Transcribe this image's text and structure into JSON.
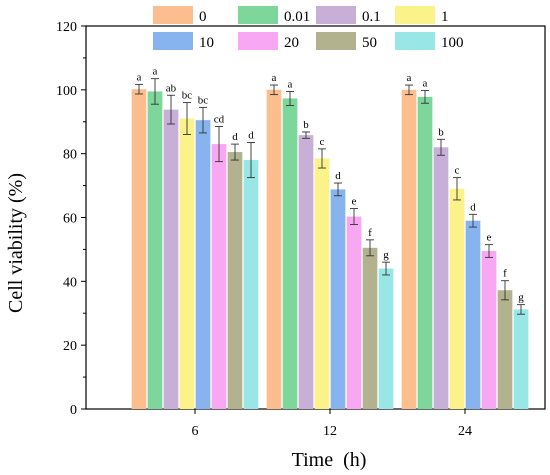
{
  "chart_data": {
    "type": "bar",
    "categories": [
      "6",
      "12",
      "24"
    ],
    "xlabel": "Time  (h)",
    "ylabel": "Cell viability (%)",
    "ylim": [
      0,
      120
    ],
    "yticks": [
      0,
      20,
      40,
      60,
      80,
      100,
      120
    ],
    "legend_position": "top-right",
    "grid": false,
    "series": [
      {
        "name": "0",
        "color": "#FDBE8F",
        "values": [
          100.2,
          100.0,
          100.0
        ],
        "errors": [
          1.5,
          1.5,
          1.5
        ],
        "letters": [
          "a",
          "a",
          "a"
        ]
      },
      {
        "name": "0.01",
        "color": "#7DD69A",
        "values": [
          99.5,
          97.3,
          97.8
        ],
        "errors": [
          4.0,
          2.2,
          2.0
        ],
        "letters": [
          "a",
          "a",
          "a"
        ]
      },
      {
        "name": "0.1",
        "color": "#C8AFD8",
        "values": [
          93.8,
          85.8,
          82.0
        ],
        "errors": [
          4.5,
          1.0,
          2.5
        ],
        "letters": [
          "ab",
          "b",
          "b"
        ]
      },
      {
        "name": "1",
        "color": "#FBF28A",
        "values": [
          91.0,
          78.5,
          69.0
        ],
        "errors": [
          5.0,
          3.0,
          3.5
        ],
        "letters": [
          "bc",
          "c",
          "c"
        ]
      },
      {
        "name": "10",
        "color": "#87B4EE",
        "values": [
          90.5,
          68.8,
          59.0
        ],
        "errors": [
          4.0,
          2.0,
          2.0
        ],
        "letters": [
          "bc",
          "d",
          "d"
        ]
      },
      {
        "name": "20",
        "color": "#F8A8F2",
        "values": [
          83.0,
          60.3,
          49.5
        ],
        "errors": [
          5.5,
          2.5,
          2.0
        ],
        "letters": [
          "cd",
          "e",
          "e"
        ]
      },
      {
        "name": "50",
        "color": "#B2B28E",
        "values": [
          80.5,
          50.5,
          37.2
        ],
        "errors": [
          2.5,
          2.5,
          3.0
        ],
        "letters": [
          "d",
          "f",
          "f"
        ]
      },
      {
        "name": "100",
        "color": "#99E6E6",
        "values": [
          78.0,
          44.0,
          31.2
        ],
        "errors": [
          5.5,
          2.0,
          1.5
        ],
        "letters": [
          "d",
          "g",
          "g"
        ]
      }
    ]
  }
}
